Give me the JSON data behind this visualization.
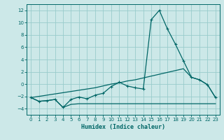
{
  "xlabel": "Humidex (Indice chaleur)",
  "x_values": [
    0,
    1,
    2,
    3,
    4,
    5,
    6,
    7,
    8,
    9,
    10,
    11,
    12,
    13,
    14,
    15,
    16,
    17,
    18,
    19,
    20,
    21,
    22,
    23
  ],
  "line_upper": [
    -2.2,
    -2.8,
    -2.7,
    -2.5,
    -3.8,
    -2.5,
    -2.1,
    -2.4,
    -1.8,
    -1.5,
    -0.4,
    0.3,
    -0.3,
    -0.6,
    -0.8,
    10.5,
    12.0,
    9.0,
    6.5,
    3.8,
    1.1,
    0.7,
    -0.1,
    -2.2
  ],
  "line_middle": [
    -2.2,
    -2.0,
    -1.8,
    -1.6,
    -1.4,
    -1.2,
    -1.0,
    -0.8,
    -0.6,
    -0.3,
    0.0,
    0.2,
    0.5,
    0.7,
    1.0,
    1.3,
    1.6,
    1.9,
    2.2,
    2.5,
    1.1,
    0.7,
    -0.1,
    -2.2
  ],
  "line_lower": [
    -2.2,
    -2.8,
    -2.7,
    -2.5,
    -3.8,
    -3.3,
    -3.2,
    -3.2,
    -3.2,
    -3.2,
    -3.2,
    -3.2,
    -3.2,
    -3.2,
    -3.2,
    -3.2,
    -3.2,
    -3.2,
    -3.2,
    -3.2,
    -3.2,
    -3.2,
    -3.2,
    -3.2
  ],
  "bg_color": "#cce8e8",
  "grid_color": "#99cccc",
  "line_color": "#006666",
  "ylim": [
    -5,
    13
  ],
  "yticks": [
    -4,
    -2,
    0,
    2,
    4,
    6,
    8,
    10,
    12
  ],
  "xticks": [
    0,
    1,
    2,
    3,
    4,
    5,
    6,
    7,
    8,
    9,
    10,
    11,
    12,
    13,
    14,
    15,
    16,
    17,
    18,
    19,
    20,
    21,
    22,
    23
  ]
}
